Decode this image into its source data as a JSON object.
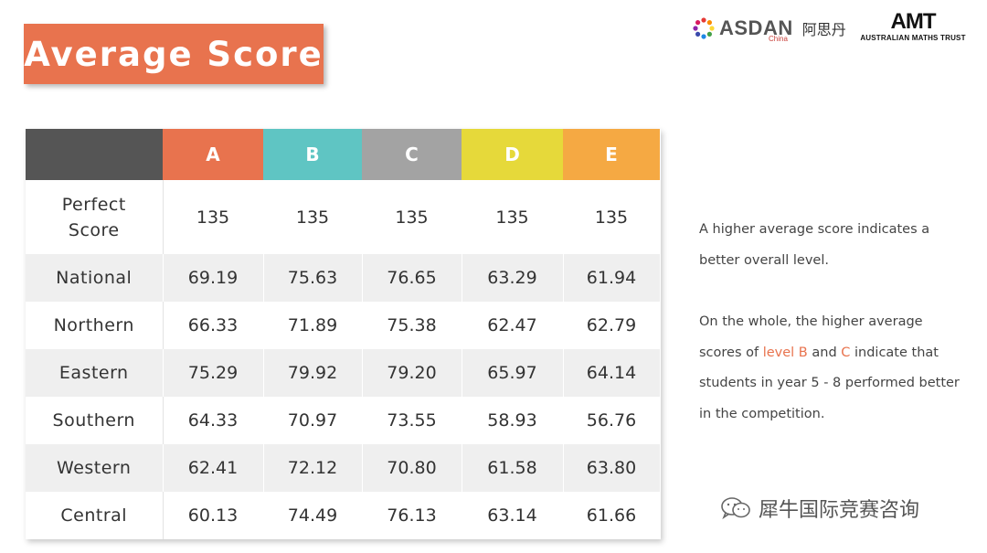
{
  "title": "Average Score",
  "logos": {
    "asdan_name": "ASDAN",
    "asdan_sub": "China",
    "asdan_chinese": "阿思丹",
    "amt_mark": "AMT",
    "amt_full": "AUSTRALIAN MATHS TRUST"
  },
  "colors": {
    "accent_orange": "#e8734e",
    "level_a": "#e8734e",
    "level_b": "#5fc5c3",
    "level_c": "#a3a3a3",
    "level_d": "#e6d93a",
    "level_e": "#f5a943",
    "header_corner": "#555555"
  },
  "table": {
    "columns": [
      "A",
      "B",
      "C",
      "D",
      "E"
    ],
    "rows": [
      {
        "label": "Perfect Score",
        "values": [
          "135",
          "135",
          "135",
          "135",
          "135"
        ]
      },
      {
        "label": "National",
        "values": [
          "69.19",
          "75.63",
          "76.65",
          "63.29",
          "61.94"
        ]
      },
      {
        "label": "Northern",
        "values": [
          "66.33",
          "71.89",
          "75.38",
          "62.47",
          "62.79"
        ]
      },
      {
        "label": "Eastern",
        "values": [
          "75.29",
          "79.92",
          "79.20",
          "65.97",
          "64.14"
        ]
      },
      {
        "label": "Southern",
        "values": [
          "64.33",
          "70.97",
          "73.55",
          "58.93",
          "56.76"
        ]
      },
      {
        "label": "Western",
        "values": [
          "62.41",
          "72.12",
          "70.80",
          "61.58",
          "63.80"
        ]
      },
      {
        "label": "Central",
        "values": [
          "60.13",
          "74.49",
          "76.13",
          "63.14",
          "61.66"
        ]
      }
    ]
  },
  "notes": {
    "p1": "A higher average score indicates a better overall level.",
    "p2_before": "On the whole, the higher average scores of ",
    "p2_level_b": "level B",
    "p2_and": " and ",
    "p2_c": "C",
    "p2_after": " indicate that students in year 5 - 8 performed better in the competition."
  },
  "watermark": {
    "text": "犀牛国际竞赛咨询",
    "icon": "wechat-icon"
  }
}
